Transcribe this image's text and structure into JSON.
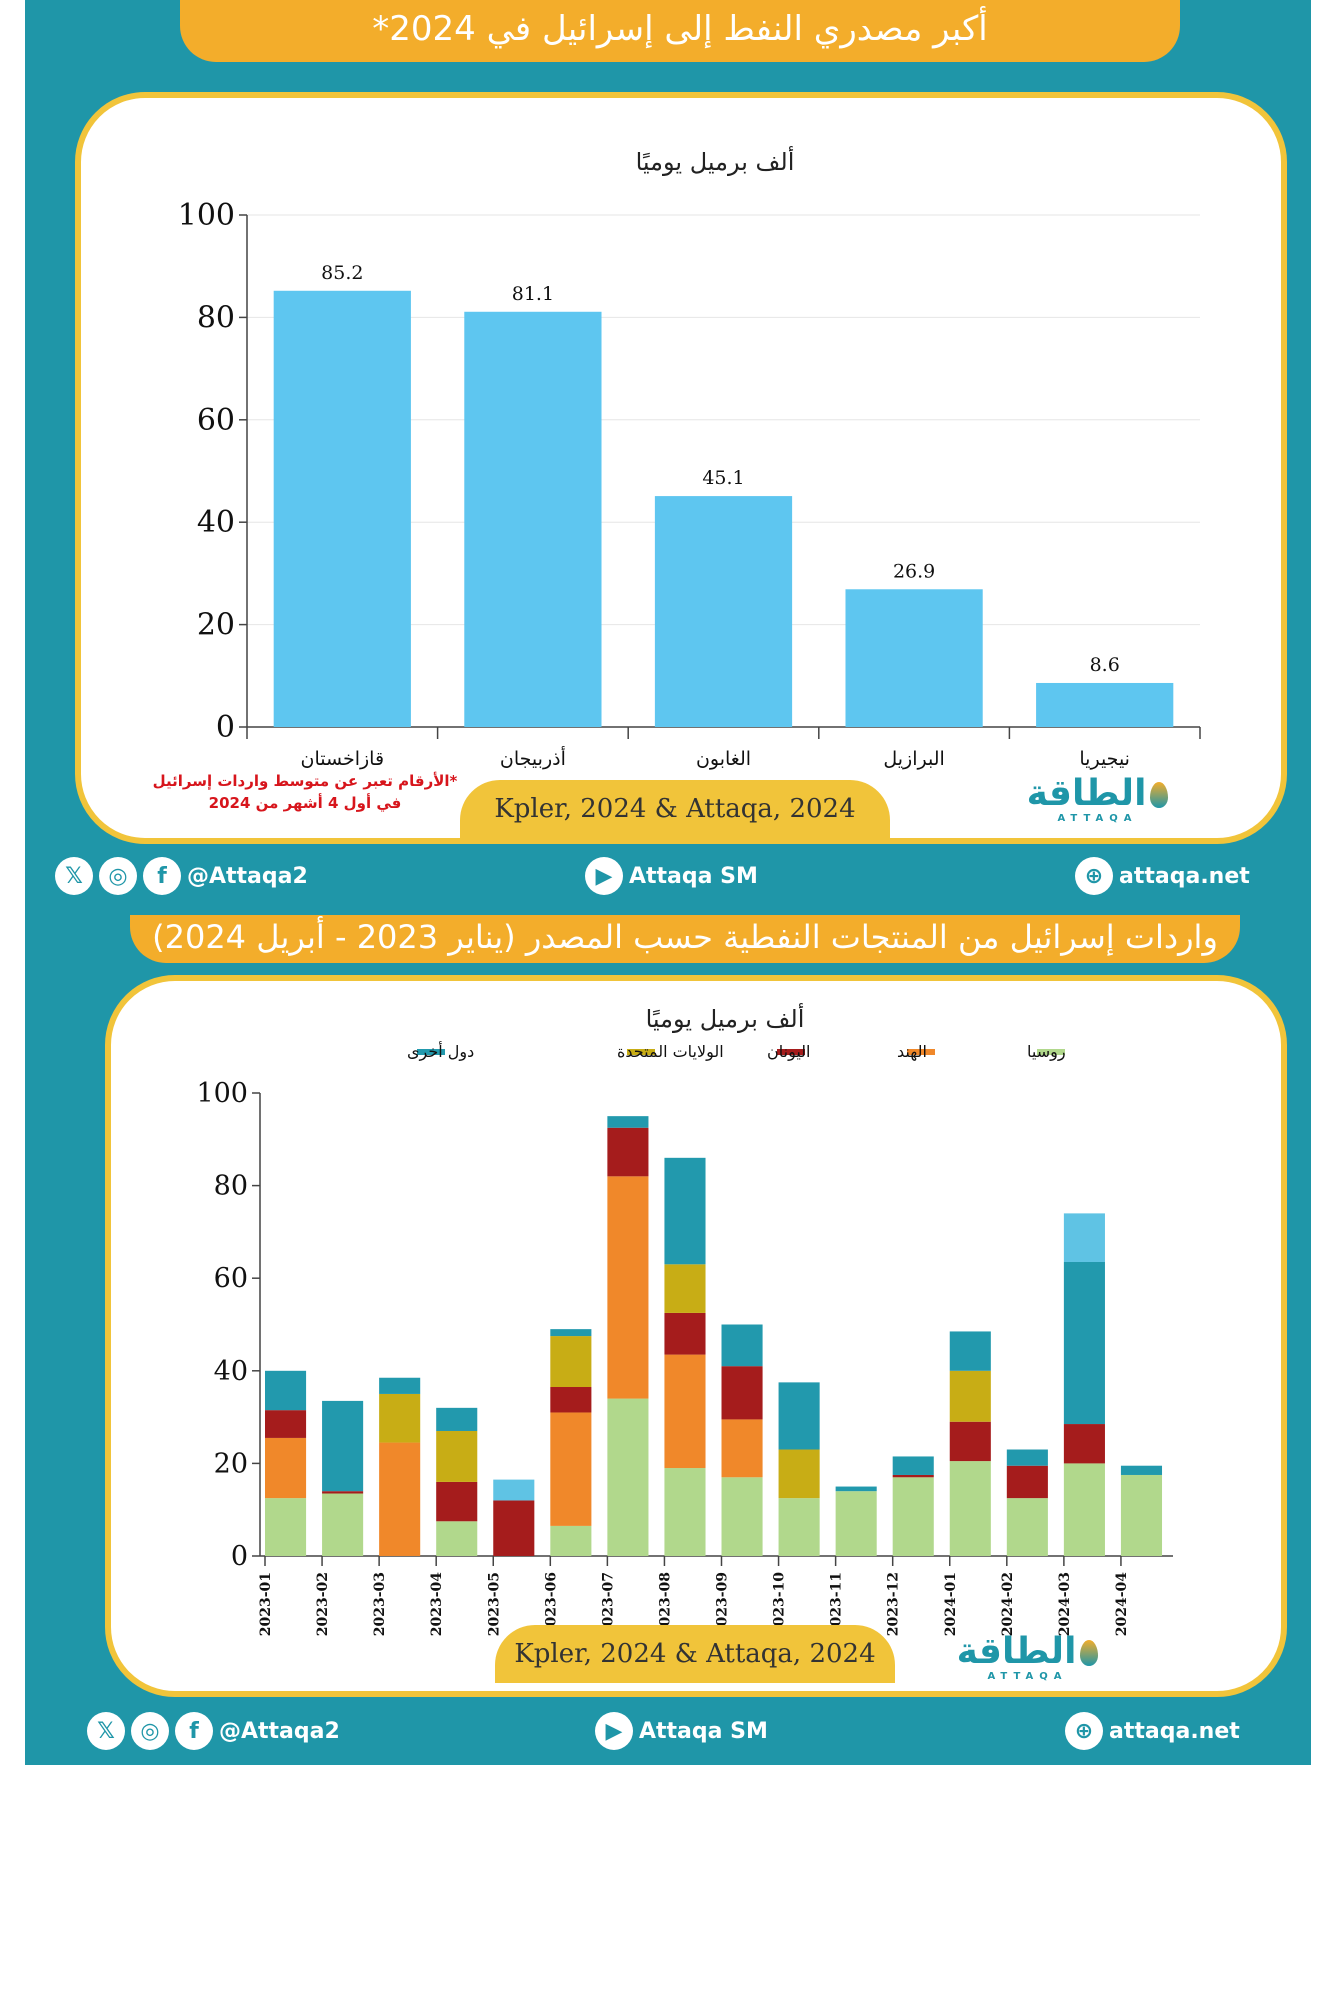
{
  "footer": {
    "social_handle": "@Attaqa2",
    "youtube": "Attaqa SM",
    "website": "attaqa.net"
  },
  "logo": {
    "arabic": "الطاقة",
    "latin": "ATTAQA"
  },
  "panel1": {
    "title": "أكبر مصدري النفط إلى إسرائيل في 2024*",
    "source": "Kpler, 2024 & Attaqa, 2024",
    "note_line1": "*الأرقام تعبر عن متوسط واردات إسرائيل",
    "note_line2": "في أول 4 أشهر من 2024"
  },
  "panel2": {
    "title": "واردات إسرائيل من المنتجات النفطية حسب المصدر (يناير 2023 - أبريل 2024)",
    "source": "Kpler, 2024 & Attaqa, 2024"
  },
  "chart_data": [
    {
      "type": "bar",
      "title": "ألف برميل يوميًا",
      "categories": [
        "قازاخستان",
        "أذربيجان",
        "الغابون",
        "البرازيل",
        "نيجيريا"
      ],
      "values": [
        85.2,
        81.1,
        45.1,
        26.9,
        8.6
      ],
      "value_labels": [
        "85.2",
        "81.1",
        "45.1",
        "26.9",
        "8.6"
      ],
      "ylim": [
        0,
        100
      ],
      "yticks": [
        0,
        20,
        40,
        60,
        80,
        100
      ],
      "bar_color": "#5ec6f0",
      "grid": true
    },
    {
      "type": "bar",
      "stacked": true,
      "title": "ألف برميل يوميًا",
      "categories": [
        "2023-01",
        "2023-02",
        "2023-03",
        "2023-04",
        "2023-05",
        "2023-06",
        "2023-07",
        "2023-08",
        "2023-09",
        "2023-10",
        "2023-11",
        "2023-12",
        "2024-01",
        "2024-02",
        "2024-03",
        "2024-04"
      ],
      "ylim": [
        0,
        100
      ],
      "yticks": [
        0,
        20,
        40,
        60,
        80,
        100
      ],
      "legend_position": "top",
      "series": [
        {
          "name": "روسيا",
          "color": "#b1d88c",
          "values": [
            12.5,
            13.5,
            0,
            7.5,
            0,
            6.5,
            34,
            19,
            17,
            12.5,
            14,
            17,
            20.5,
            12.5,
            20,
            17.5
          ]
        },
        {
          "name": "الهند",
          "color": "#f0882a",
          "values": [
            13,
            0,
            24.5,
            0,
            0,
            24.5,
            48,
            24.5,
            12.5,
            0,
            0,
            0,
            0,
            0,
            0,
            0
          ]
        },
        {
          "name": "اليونان",
          "color": "#a51c1c",
          "values": [
            6,
            0.5,
            0,
            8.5,
            12,
            5.5,
            10.5,
            9,
            11.5,
            0,
            0,
            0.5,
            8.5,
            7,
            8.5,
            0
          ]
        },
        {
          "name": "الولايات المتحدة",
          "color": "#c8ad15",
          "values": [
            0,
            0,
            10.5,
            11,
            0,
            11,
            0,
            10.5,
            0,
            10.5,
            0,
            0,
            11,
            0,
            0,
            0
          ]
        },
        {
          "name": "دول أخرى",
          "color": "#2299ad",
          "values": [
            8.5,
            19.5,
            3.5,
            5,
            0,
            1.5,
            2.5,
            23,
            9,
            14.5,
            1,
            4,
            8.5,
            3.5,
            35,
            2
          ]
        },
        {
          "name": "",
          "color": "#5fc3e4",
          "values": [
            0,
            0,
            0,
            0,
            4.5,
            0,
            0,
            0,
            0,
            0,
            0,
            0,
            0,
            0,
            10.5,
            0
          ]
        }
      ]
    }
  ]
}
